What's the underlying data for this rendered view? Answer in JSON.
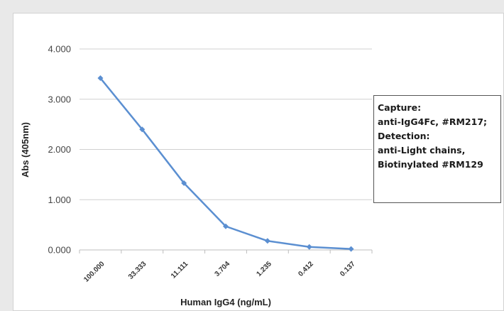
{
  "chart_data": {
    "type": "line",
    "title": "",
    "xlabel": "Human IgG4 (ng/mL)",
    "ylabel": "Abs (405nm)",
    "categories": [
      "100.000",
      "33.333",
      "11.111",
      "3.704",
      "1.235",
      "0.412",
      "0.137"
    ],
    "y_ticks": [
      "0.000",
      "1.000",
      "2.000",
      "3.000",
      "4.000"
    ],
    "ylim": [
      0,
      4
    ],
    "grid": true,
    "series": [
      {
        "values": [
          3.42,
          2.4,
          1.33,
          0.47,
          0.18,
          0.06,
          0.02
        ],
        "color": "#5b8fd1"
      }
    ],
    "annotation_lines": [
      "Capture:",
      "anti-IgG4Fc, #RM217;",
      "Detection:",
      "anti-Light chains,",
      "Biotinylated #RM129"
    ]
  }
}
